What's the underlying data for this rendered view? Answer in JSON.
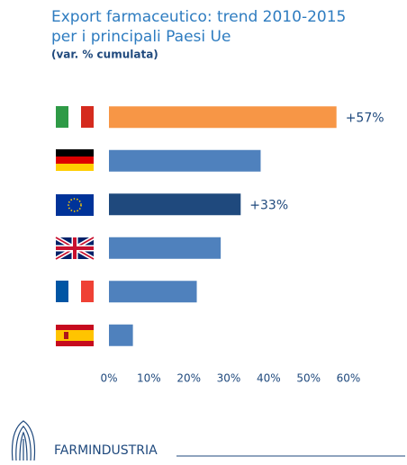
{
  "chart_data": {
    "type": "bar",
    "title": [
      "Export farmaceutico: trend 2010-2015",
      "per i principali Paesi Ue"
    ],
    "subtitle": "(var. % cumulata)",
    "categories": [
      null,
      null,
      null,
      null,
      null,
      null
    ],
    "values": [
      57,
      38,
      33,
      28,
      22,
      6
    ],
    "value_labels": [
      "+57%",
      null,
      "+33%",
      null,
      null,
      null
    ],
    "colors": [
      "#f79646",
      "#4f81bd",
      "#1f497d",
      "#4f81bd",
      "#4f81bd",
      "#4f81bd"
    ],
    "xlim": [
      0,
      60
    ],
    "xticks": [
      {
        "value": 0,
        "label": "0%"
      },
      {
        "value": 10,
        "label": "10%"
      },
      {
        "value": 20,
        "label": "20%"
      },
      {
        "value": 30,
        "label": "30%"
      },
      {
        "value": 40,
        "label": "40%"
      },
      {
        "value": 50,
        "label": "50%"
      },
      {
        "value": 60,
        "label": "60%"
      }
    ],
    "grid": false
  },
  "logo_text": "FARMINDUSTRIA"
}
